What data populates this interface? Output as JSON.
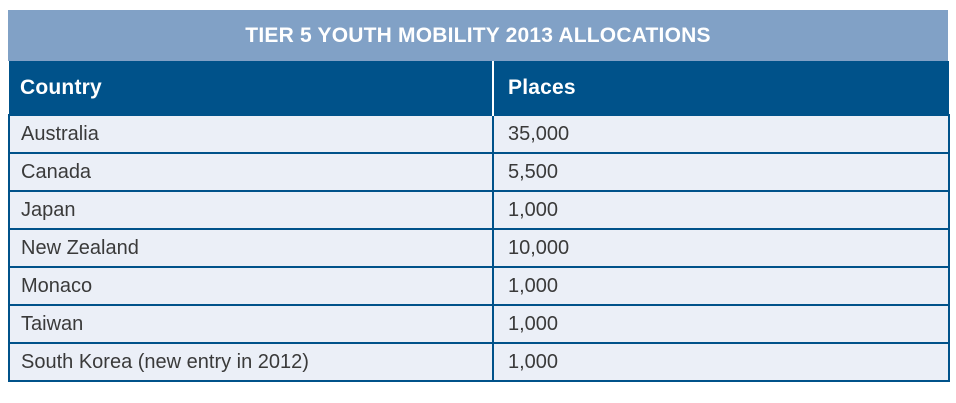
{
  "title": "TIER 5 YOUTH MOBILITY 2013 ALLOCATIONS",
  "table": {
    "columns": [
      "Country",
      "Places"
    ],
    "rows": [
      {
        "country": "Australia",
        "places": "35,000"
      },
      {
        "country": "Canada",
        "places": "5,500"
      },
      {
        "country": "Japan",
        "places": "1,000"
      },
      {
        "country": "New Zealand",
        "places": "10,000"
      },
      {
        "country": "Monaco",
        "places": "1,000"
      },
      {
        "country": "Taiwan",
        "places": "1,000"
      },
      {
        "country": "South Korea (new entry in 2012)",
        "places": "1,000"
      }
    ]
  },
  "chart_data": {
    "type": "table",
    "title": "TIER 5 YOUTH MOBILITY 2013 ALLOCATIONS",
    "columns": [
      "Country",
      "Places"
    ],
    "categories": [
      "Australia",
      "Canada",
      "Japan",
      "New Zealand",
      "Monaco",
      "Taiwan",
      "South Korea (new entry in 2012)"
    ],
    "values": [
      35000,
      5500,
      1000,
      10000,
      1000,
      1000,
      1000
    ]
  },
  "colors": {
    "title_band_bg": "#81a1c6",
    "header_bg": "#00528a",
    "row_bg": "#ebeff7",
    "border": "#00528a",
    "header_text": "#ffffff",
    "body_text": "#3a3a3a"
  }
}
